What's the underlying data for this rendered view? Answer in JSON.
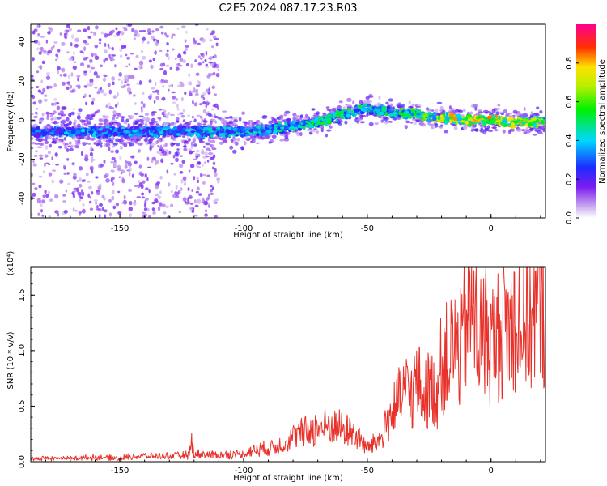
{
  "title": "C2E5.2024.087.17.23.R03",
  "chart_data": [
    {
      "type": "heatmap",
      "xlabel": "Height of straight line (km)",
      "ylabel": "Frequency (Hz)",
      "xlim": [
        -186,
        22
      ],
      "ylim": [
        -50,
        49
      ],
      "x_ticks": [
        -150,
        -100,
        -50,
        0
      ],
      "y_ticks": [
        -40,
        -20,
        0,
        20,
        40
      ],
      "colorbar": {
        "label": "Normalized spectral amplitude",
        "range": [
          0.0,
          1.0
        ],
        "ticks": [
          0.0,
          0.2,
          0.4,
          0.6,
          0.8
        ],
        "tick_labels": [
          "0.0",
          "0.2",
          "0.4",
          "0.6",
          "0.8"
        ]
      },
      "ridge": {
        "x": [
          -186,
          -170,
          -150,
          -130,
          -110,
          -100,
          -90,
          -80,
          -70,
          -60,
          -50,
          -40,
          -30,
          -20,
          -10,
          0,
          10,
          22
        ],
        "freq": [
          -6,
          -6,
          -6,
          -6,
          -6,
          -6,
          -5,
          -3,
          -1,
          3,
          6,
          4,
          3,
          1,
          0,
          0,
          -1,
          -1
        ],
        "amplitude": [
          0.35,
          0.4,
          0.4,
          0.4,
          0.45,
          0.45,
          0.45,
          0.5,
          0.55,
          0.55,
          0.5,
          0.55,
          0.6,
          0.75,
          0.85,
          0.85,
          0.8,
          0.7
        ]
      },
      "scatter_noise_region_km": [
        -186,
        -110
      ]
    },
    {
      "type": "line",
      "xlabel": "Height of straight line (km)",
      "ylabel": "SNR (10 * v/v)",
      "y_multiplier": "(x10⁴)",
      "xlim": [
        -186,
        22
      ],
      "ylim": [
        0,
        1.75
      ],
      "x_ticks": [
        -150,
        -100,
        -50,
        0
      ],
      "y_ticks": [
        0.0,
        0.5,
        1.0,
        1.5
      ],
      "y_tick_labels": [
        "0.0",
        "0.5",
        "1.0",
        "1.5"
      ],
      "color": "#e8312a",
      "series": [
        {
          "x": [
            -186,
            -170,
            -160,
            -150,
            -145,
            -140,
            -130,
            -122,
            -121,
            -120,
            -110,
            -100,
            -95,
            -90,
            -85,
            -80,
            -75,
            -70,
            -65,
            -60,
            -55,
            -50,
            -45,
            -42,
            -40,
            -37,
            -35,
            -32,
            -30,
            -27,
            -25,
            -22,
            -20,
            -17,
            -15,
            -12,
            -10,
            -8,
            -5,
            -2,
            0,
            3,
            5,
            8,
            10,
            13,
            15,
            18,
            20,
            22
          ],
          "values": [
            0.03,
            0.03,
            0.04,
            0.03,
            0.05,
            0.05,
            0.05,
            0.06,
            0.18,
            0.07,
            0.06,
            0.07,
            0.11,
            0.12,
            0.15,
            0.22,
            0.27,
            0.3,
            0.32,
            0.3,
            0.25,
            0.12,
            0.2,
            0.35,
            0.45,
            0.55,
            0.65,
            0.6,
            0.75,
            0.55,
            0.7,
            0.6,
            0.9,
            0.95,
            1.05,
            1.0,
            1.3,
            1.45,
            1.1,
            1.2,
            1.05,
            1.15,
            1.25,
            1.2,
            1.35,
            1.2,
            1.3,
            1.4,
            1.35,
            1.45
          ]
        }
      ]
    }
  ]
}
